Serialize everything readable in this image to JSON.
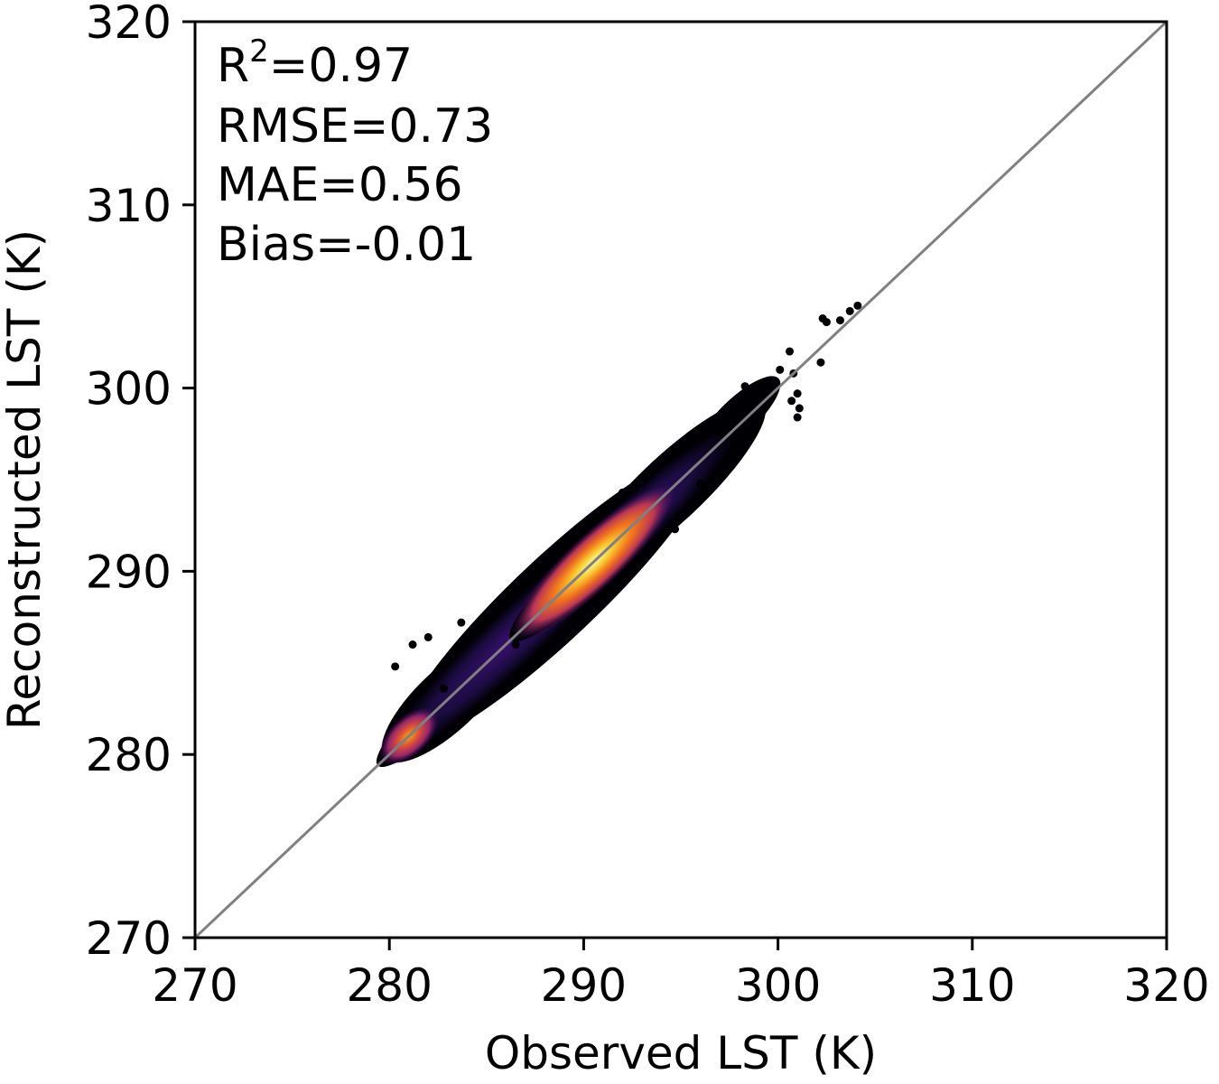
{
  "chart_data": {
    "type": "scatter",
    "title": "",
    "xlabel": "Observed LST (K)",
    "ylabel": "Reconstructed LST (K)",
    "xlim": [
      270,
      320
    ],
    "ylim": [
      270,
      320
    ],
    "xticks": [
      "270",
      "280",
      "290",
      "300",
      "310",
      "320"
    ],
    "yticks": [
      "270",
      "280",
      "290",
      "300",
      "310",
      "320"
    ],
    "grid": false,
    "reference_line": {
      "type": "1:1",
      "from": [
        270,
        270
      ],
      "to": [
        320,
        320
      ],
      "color": "#808080"
    },
    "density_colormap": "inferno",
    "stats": {
      "r2_prefix": "R",
      "r2_superscript": "2",
      "r2_value": "=0.97",
      "rmse": "RMSE=0.73",
      "mae": "MAE=0.56",
      "bias": "Bias=-0.01"
    },
    "point_cloud_envelope": {
      "x_range": [
        280.5,
        305
      ],
      "y_range": [
        279,
        304.5
      ],
      "density_peaks": [
        [
          281,
          281
        ],
        [
          290.5,
          290.5
        ]
      ]
    },
    "outliers": [
      [
        280.3,
        284.8
      ],
      [
        281.2,
        286.0
      ],
      [
        282.0,
        286.4
      ],
      [
        283.7,
        287.2
      ],
      [
        282.8,
        283.6
      ],
      [
        283.3,
        285.5
      ],
      [
        286.5,
        286.0
      ],
      [
        287.5,
        290.1
      ],
      [
        292.0,
        294.3
      ],
      [
        294.7,
        292.3
      ],
      [
        296.0,
        294.8
      ],
      [
        297.0,
        297.6
      ],
      [
        298.3,
        300.1
      ],
      [
        299.6,
        300.3
      ],
      [
        300.1,
        301.0
      ],
      [
        300.6,
        302.0
      ],
      [
        301.0,
        299.7
      ],
      [
        300.8,
        300.8
      ],
      [
        302.2,
        301.4
      ],
      [
        302.3,
        303.8
      ],
      [
        302.5,
        303.6
      ],
      [
        303.2,
        303.7
      ],
      [
        303.7,
        304.2
      ],
      [
        304.1,
        304.5
      ],
      [
        299.2,
        299.2
      ],
      [
        301.1,
        298.9
      ],
      [
        301.0,
        298.4
      ],
      [
        300.7,
        299.3
      ]
    ]
  },
  "colors": {
    "axes": "#000000",
    "reference_line": "#808080",
    "background": "#ffffff"
  }
}
